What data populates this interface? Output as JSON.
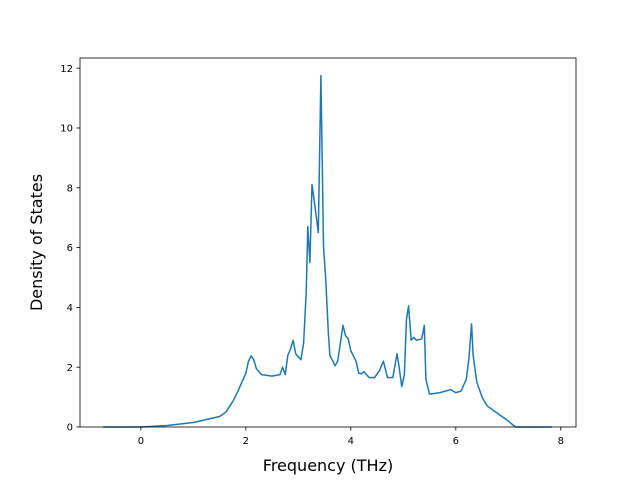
{
  "chart_data": {
    "type": "line",
    "xlabel": "Frequency (THz)",
    "ylabel": "Density of States",
    "xlim": [
      -1.16,
      8.29
    ],
    "ylim": [
      0,
      12.34
    ],
    "xticks": [
      0,
      2,
      4,
      6,
      8
    ],
    "yticks": [
      0,
      2,
      4,
      6,
      8,
      10,
      12
    ],
    "grid": false,
    "series": [
      {
        "color": "#1f77b4",
        "x": [
          -0.72,
          0,
          0.5,
          1.0,
          1.5,
          1.62,
          1.75,
          1.85,
          1.95,
          2.0,
          2.05,
          2.1,
          2.15,
          2.2,
          2.3,
          2.5,
          2.65,
          2.7,
          2.75,
          2.8,
          2.85,
          2.9,
          2.95,
          3.05,
          3.1,
          3.15,
          3.18,
          3.22,
          3.26,
          3.3,
          3.38,
          3.43,
          3.48,
          3.52,
          3.57,
          3.6,
          3.7,
          3.75,
          3.8,
          3.85,
          3.9,
          3.95,
          4.0,
          4.1,
          4.15,
          4.2,
          4.25,
          4.35,
          4.45,
          4.55,
          4.62,
          4.7,
          4.8,
          4.88,
          4.92,
          4.97,
          5.02,
          5.06,
          5.1,
          5.15,
          5.2,
          5.25,
          5.35,
          5.4,
          5.43,
          5.5,
          5.7,
          5.9,
          6.0,
          6.1,
          6.2,
          6.25,
          6.3,
          6.33,
          6.4,
          6.5,
          6.6,
          6.8,
          7.0,
          7.1,
          7.15,
          7.83
        ],
        "values": [
          0,
          0,
          0.05,
          0.15,
          0.35,
          0.5,
          0.85,
          1.2,
          1.6,
          1.8,
          2.2,
          2.38,
          2.25,
          1.95,
          1.75,
          1.7,
          1.75,
          2.0,
          1.75,
          2.4,
          2.6,
          2.9,
          2.45,
          2.25,
          2.8,
          4.5,
          6.7,
          5.5,
          8.1,
          7.6,
          6.5,
          11.75,
          6.0,
          5.0,
          3.2,
          2.4,
          2.05,
          2.2,
          2.8,
          3.4,
          3.05,
          2.95,
          2.55,
          2.2,
          1.8,
          1.78,
          1.85,
          1.65,
          1.65,
          1.9,
          2.2,
          1.65,
          1.65,
          2.45,
          2.0,
          1.35,
          1.75,
          3.6,
          4.05,
          2.9,
          3.0,
          2.9,
          2.95,
          3.4,
          1.6,
          1.1,
          1.15,
          1.25,
          1.15,
          1.2,
          1.6,
          2.3,
          3.45,
          2.4,
          1.5,
          1.0,
          0.7,
          0.45,
          0.2,
          0.05,
          0,
          0
        ]
      }
    ]
  }
}
